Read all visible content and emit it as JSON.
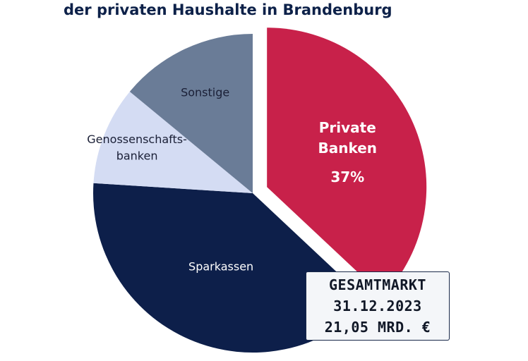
{
  "chart_data": {
    "type": "pie",
    "title": "der privaten Haushalte in Brandenburg",
    "slices": [
      {
        "name_lines": [
          "Private",
          "Banken"
        ],
        "value": 37,
        "value_label": "37%",
        "color": "#c8214a",
        "exploded": true
      },
      {
        "name_lines": [
          "Sparkassen"
        ],
        "value": 39,
        "value_label": "",
        "color": "#0d1f4a",
        "exploded": false
      },
      {
        "name_lines": [
          "Genossenschafts-",
          "banken"
        ],
        "value": 10,
        "value_label": "",
        "color": "#d4dcf3",
        "exploded": false
      },
      {
        "name_lines": [
          "Sonstige"
        ],
        "value": 14,
        "value_label": "",
        "color": "#6a7c97",
        "exploded": false
      }
    ]
  },
  "total_box": {
    "line1": "GESAMTMARKT",
    "line2": "31.12.2023",
    "line3": "21,05 MRD. €"
  }
}
